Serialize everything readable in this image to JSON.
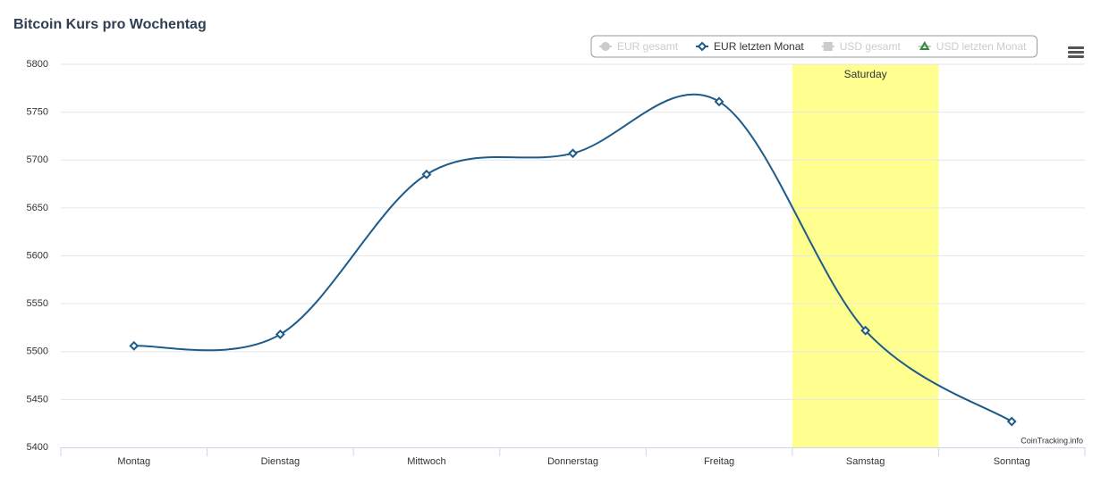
{
  "chart_data": {
    "type": "line",
    "title": "Bitcoin Kurs pro Wochentag",
    "categories": [
      "Montag",
      "Dienstag",
      "Mittwoch",
      "Donnerstag",
      "Freitag",
      "Samstag",
      "Sonntag"
    ],
    "series": [
      {
        "name": "EUR gesamt",
        "color": "#cccccc",
        "marker": "circle",
        "visible": false,
        "values": [
          null,
          null,
          null,
          null,
          null,
          null,
          null
        ]
      },
      {
        "name": "EUR letzten Monat",
        "color": "#1d5b8a",
        "marker": "diamond",
        "visible": true,
        "values": [
          5506,
          5518,
          5685,
          5707,
          5761,
          5522,
          5427
        ]
      },
      {
        "name": "USD gesamt",
        "color": "#cccccc",
        "marker": "square",
        "visible": false,
        "values": [
          null,
          null,
          null,
          null,
          null,
          null,
          null
        ]
      },
      {
        "name": "USD letzten Monat",
        "color": "#2e8b3a",
        "marker": "triangle",
        "visible": false,
        "values": [
          null,
          null,
          null,
          null,
          null,
          null,
          null
        ]
      }
    ],
    "ylim": [
      5400,
      5800
    ],
    "yticks": [
      5400,
      5450,
      5500,
      5550,
      5600,
      5650,
      5700,
      5750,
      5800
    ],
    "grid": true,
    "plot_band": {
      "category": "Samstag",
      "label": "Saturday",
      "color": "#ffff8f"
    },
    "credits": "CoinTracking.info"
  }
}
